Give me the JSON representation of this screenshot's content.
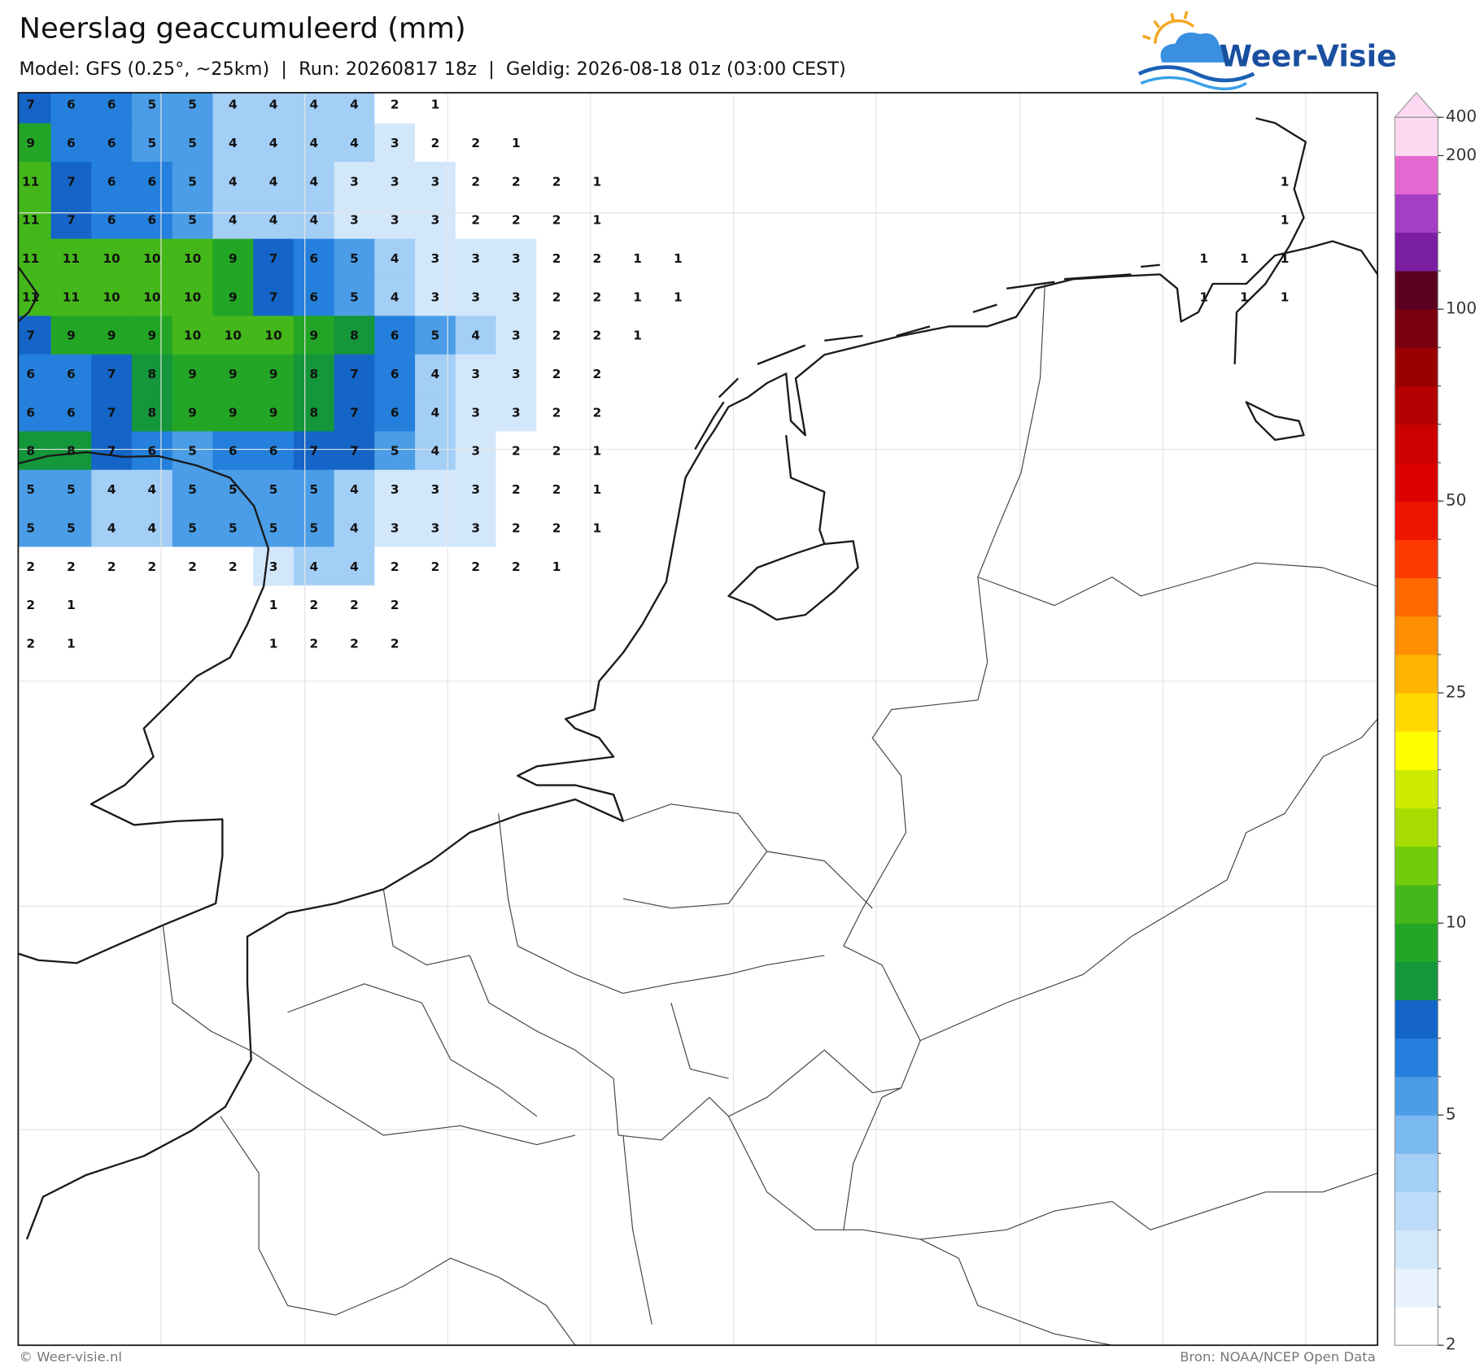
{
  "header": {
    "title": "Neerslag geaccumuleerd (mm)",
    "subtitle": "Model: GFS (0.25°, ~25km)  |  Run: 20260817 18z  |  Geldig: 2026-08-18 01z (03:00 CEST)"
  },
  "logo": {
    "text": "Weer-Visie"
  },
  "map": {
    "grid_values": [
      [
        7,
        6,
        6,
        5,
        5,
        4,
        4,
        4,
        4,
        2,
        1
      ],
      [
        9,
        6,
        6,
        5,
        5,
        4,
        4,
        4,
        4,
        3,
        2,
        2,
        1
      ],
      [
        11,
        7,
        6,
        6,
        5,
        4,
        4,
        4,
        3,
        3,
        3,
        2,
        2,
        2,
        1,
        null,
        null,
        null,
        null,
        null,
        null,
        null,
        null,
        null,
        null,
        null,
        null,
        null,
        null,
        null,
        null,
        1
      ],
      [
        11,
        7,
        6,
        6,
        5,
        4,
        4,
        4,
        3,
        3,
        3,
        2,
        2,
        2,
        1,
        null,
        null,
        null,
        null,
        null,
        null,
        null,
        null,
        null,
        null,
        null,
        null,
        null,
        null,
        null,
        null,
        1
      ],
      [
        11,
        11,
        10,
        10,
        10,
        9,
        7,
        6,
        5,
        4,
        3,
        3,
        3,
        2,
        2,
        1,
        1,
        null,
        null,
        null,
        null,
        null,
        null,
        null,
        null,
        null,
        null,
        null,
        null,
        1,
        1,
        1
      ],
      [
        11,
        11,
        10,
        10,
        10,
        9,
        7,
        6,
        5,
        4,
        3,
        3,
        3,
        2,
        2,
        1,
        1,
        null,
        null,
        null,
        null,
        null,
        null,
        null,
        null,
        null,
        null,
        null,
        null,
        1,
        1,
        1
      ],
      [
        7,
        9,
        9,
        9,
        10,
        10,
        10,
        9,
        8,
        6,
        5,
        4,
        3,
        2,
        2,
        1
      ],
      [
        6,
        6,
        7,
        8,
        9,
        9,
        9,
        8,
        7,
        6,
        4,
        3,
        3,
        2,
        2
      ],
      [
        6,
        6,
        7,
        8,
        9,
        9,
        9,
        8,
        7,
        6,
        4,
        3,
        3,
        2,
        2
      ],
      [
        8,
        8,
        7,
        6,
        5,
        6,
        6,
        7,
        7,
        5,
        4,
        3,
        2,
        2,
        1
      ],
      [
        5,
        5,
        4,
        4,
        5,
        5,
        5,
        5,
        4,
        3,
        3,
        3,
        2,
        2,
        1
      ],
      [
        5,
        5,
        4,
        4,
        5,
        5,
        5,
        5,
        4,
        3,
        3,
        3,
        2,
        2,
        1
      ],
      [
        2,
        2,
        2,
        2,
        2,
        2,
        3,
        4,
        4,
        2,
        2,
        2,
        2,
        1
      ],
      [
        2,
        1,
        null,
        null,
        null,
        null,
        1,
        2,
        2,
        2
      ],
      [
        2,
        1,
        null,
        null,
        null,
        null,
        1,
        2,
        2,
        2
      ]
    ]
  },
  "colorbar": {
    "ticks": [
      2,
      5,
      10,
      25,
      50,
      100,
      200,
      400
    ],
    "colors": [
      "#ffffff",
      "#e8f2fd",
      "#d3e7fb",
      "#bcdcf9",
      "#a3cef6",
      "#7ab8f0",
      "#4a9de6",
      "#2480dc",
      "#1565c8",
      "#14963a",
      "#23a625",
      "#44b71a",
      "#72cb0b",
      "#a6dc00",
      "#cdea00",
      "#ffff00",
      "#ffd800",
      "#ffb400",
      "#ff8e00",
      "#ff6a00",
      "#ff3a00",
      "#ee1400",
      "#dd0000",
      "#cc0000",
      "#b30000",
      "#990000",
      "#7a0010",
      "#5c0020",
      "#7a1fa0",
      "#a43ec4",
      "#e468d2",
      "#ffd8f2"
    ]
  },
  "footer": {
    "left": "© Weer-visie.nl",
    "right": "Bron: NOAA/NCEP Open Data"
  }
}
